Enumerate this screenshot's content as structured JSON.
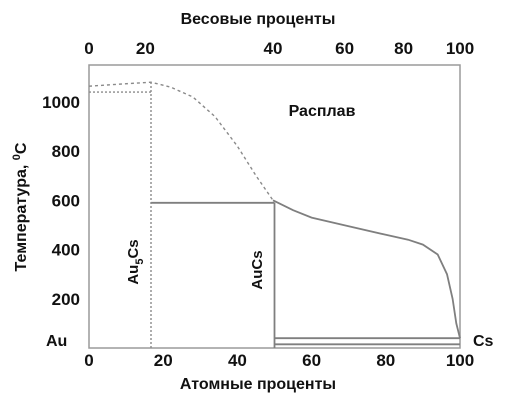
{
  "chart_data": {
    "type": "line",
    "title": "",
    "top_axis": {
      "label": "Весовые проценты",
      "ticks": [
        0,
        20,
        40,
        60,
        80,
        100
      ],
      "tick_atomic_positions": [
        0,
        15.2,
        49.6,
        68.9,
        84.8,
        100
      ]
    },
    "bottom_axis": {
      "label": "Атомные проценты",
      "ticks": [
        0,
        20,
        40,
        60,
        80,
        100
      ],
      "range": [
        0,
        100
      ]
    },
    "left_axis": {
      "label": "Температура, ",
      "label_sup": "0",
      "label_unit": "C",
      "ticks": [
        200,
        400,
        600,
        800,
        1000
      ],
      "range": [
        0,
        1150
      ]
    },
    "grid": false,
    "annotations": {
      "melt": "Расплав",
      "au": "Au",
      "cs": "Cs",
      "au5cs_a": "Au",
      "au5cs_sub": "5",
      "au5cs_b": "Cs",
      "aucs": "AuCs"
    },
    "series": [
      {
        "style": "dashed",
        "points": [
          [
            0,
            1064
          ],
          [
            8,
            1072
          ],
          [
            16.7,
            1080
          ],
          [
            22,
            1060
          ],
          [
            28,
            1020
          ],
          [
            34,
            940
          ],
          [
            40,
            820
          ],
          [
            45,
            700
          ],
          [
            49.6,
            600
          ]
        ]
      },
      {
        "style": "solid",
        "points": [
          [
            49.6,
            600
          ],
          [
            55,
            560
          ],
          [
            60,
            530
          ],
          [
            70,
            495
          ],
          [
            80,
            460
          ],
          [
            86,
            440
          ],
          [
            90,
            420
          ],
          [
            94,
            380
          ],
          [
            96.5,
            300
          ],
          [
            98,
            200
          ],
          [
            99,
            100
          ],
          [
            100,
            40
          ]
        ]
      },
      {
        "style": "dotted-horizontal",
        "points": [
          [
            0,
            1040
          ],
          [
            16.7,
            1040
          ]
        ]
      },
      {
        "style": "solid-horizontal",
        "points": [
          [
            16.7,
            590
          ],
          [
            50,
            590
          ]
        ]
      },
      {
        "style": "solid-horizontal",
        "points": [
          [
            50,
            40
          ],
          [
            100,
            40
          ]
        ]
      },
      {
        "style": "solid-horizontal",
        "points": [
          [
            50,
            15
          ],
          [
            100,
            15
          ]
        ]
      },
      {
        "style": "dotted-vertical",
        "points": [
          [
            16.7,
            0
          ],
          [
            16.7,
            1080
          ]
        ]
      },
      {
        "style": "solid-vertical",
        "points": [
          [
            50,
            0
          ],
          [
            50,
            590
          ]
        ]
      }
    ]
  }
}
